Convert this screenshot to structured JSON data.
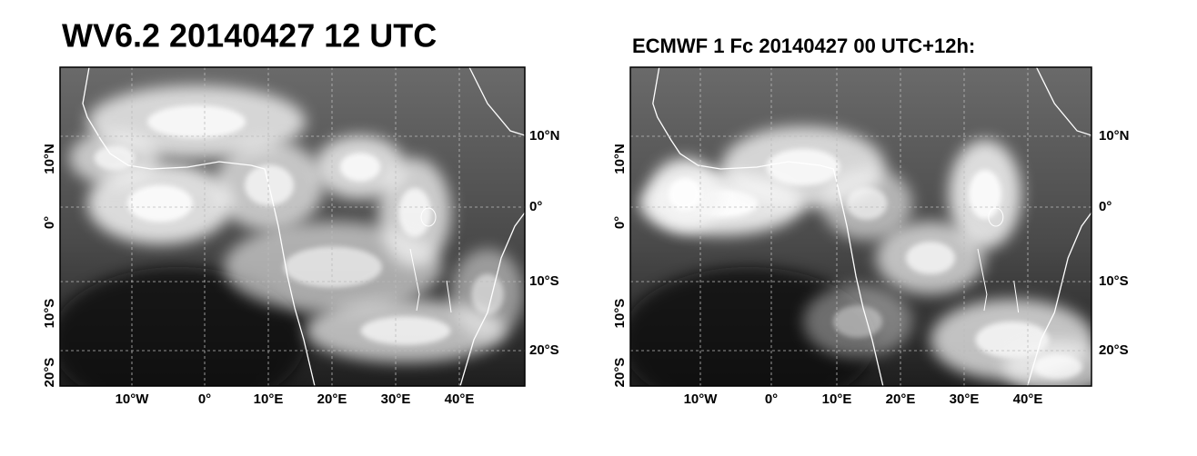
{
  "panels": [
    {
      "title": "WV6.2 20140427 12 UTC",
      "left_labels": [
        "10°N",
        "0°",
        "10°S",
        "20°S"
      ],
      "right_labels": [
        "10°N",
        "0°",
        "10°S",
        "20°S"
      ],
      "bottom_labels": [
        "10°W",
        "0°",
        "10°E",
        "20°E",
        "30°E",
        "40°E"
      ]
    },
    {
      "title": "ECMWF 1 Fc 20140427 00 UTC+12h:",
      "left_labels": [
        "10°N",
        "0°",
        "10°S",
        "20°S"
      ],
      "right_labels": [
        "10°N",
        "0°",
        "10°S",
        "20°S"
      ],
      "bottom_labels": [
        "10°W",
        "0°",
        "10°E",
        "20°E",
        "30°E",
        "40°E"
      ]
    }
  ]
}
